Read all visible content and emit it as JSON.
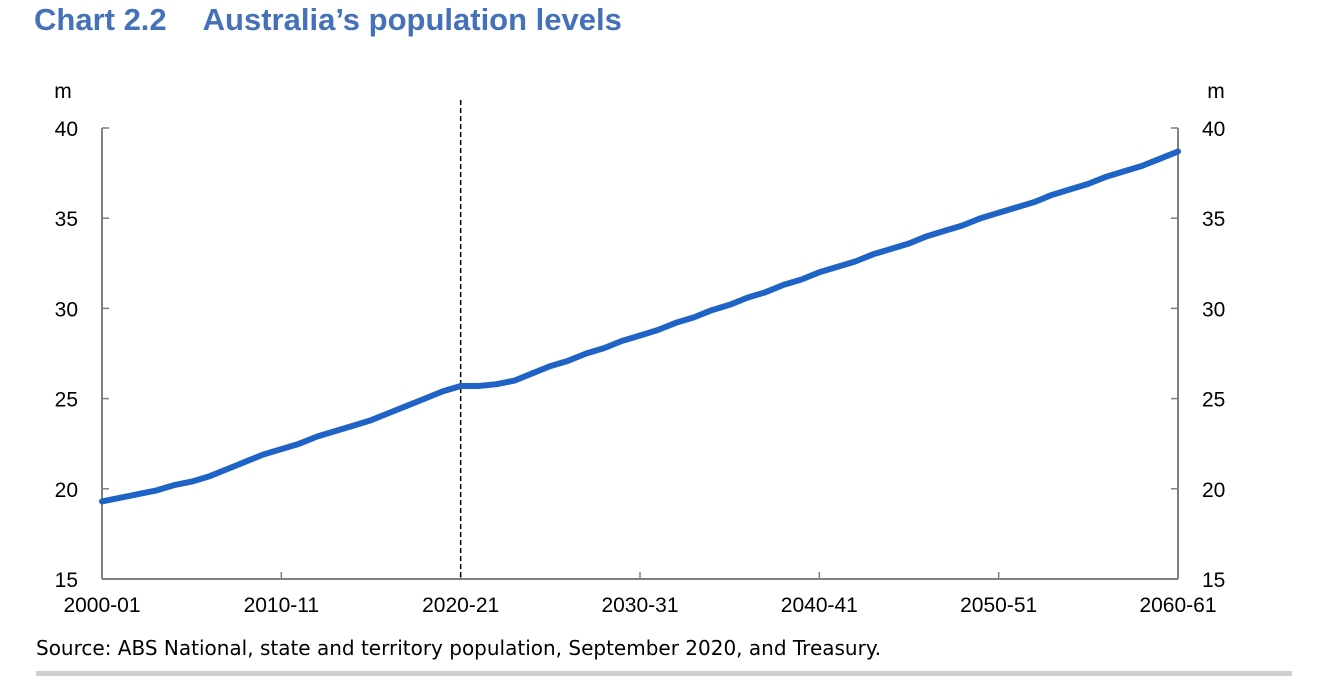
{
  "header": {
    "chart_number": "Chart 2.2",
    "chart_title": "Australia’s population levels"
  },
  "footer": {
    "source": "Source: ABS National, state and territory population, September 2020, and Treasury."
  },
  "colors": {
    "title": "#4471b8",
    "series": "#1f63c6",
    "axis": "#808080"
  },
  "chart_data": {
    "type": "line",
    "title": "Australia’s population levels",
    "ylabel_left": "m",
    "ylabel_right": "m",
    "ylim": [
      15,
      40
    ],
    "yticks": [
      15,
      20,
      25,
      30,
      35,
      40
    ],
    "xlim": [
      2000,
      2060
    ],
    "xticks": [
      {
        "x": 2000,
        "label": "2000-01"
      },
      {
        "x": 2010,
        "label": "2010-11"
      },
      {
        "x": 2020,
        "label": "2020-21"
      },
      {
        "x": 2030,
        "label": "2030-31"
      },
      {
        "x": 2040,
        "label": "2040-41"
      },
      {
        "x": 2050,
        "label": "2050-51"
      },
      {
        "x": 2060,
        "label": "2060-61"
      }
    ],
    "projection_start": 2020,
    "grid": false,
    "series": [
      {
        "name": "",
        "points": [
          [
            2000,
            19.3
          ],
          [
            2001,
            19.5
          ],
          [
            2002,
            19.7
          ],
          [
            2003,
            19.9
          ],
          [
            2004,
            20.2
          ],
          [
            2005,
            20.4
          ],
          [
            2006,
            20.7
          ],
          [
            2007,
            21.1
          ],
          [
            2008,
            21.5
          ],
          [
            2009,
            21.9
          ],
          [
            2010,
            22.2
          ],
          [
            2011,
            22.5
          ],
          [
            2012,
            22.9
          ],
          [
            2013,
            23.2
          ],
          [
            2014,
            23.5
          ],
          [
            2015,
            23.8
          ],
          [
            2016,
            24.2
          ],
          [
            2017,
            24.6
          ],
          [
            2018,
            25.0
          ],
          [
            2019,
            25.4
          ],
          [
            2020,
            25.7
          ],
          [
            2021,
            25.7
          ],
          [
            2022,
            25.8
          ],
          [
            2023,
            26.0
          ],
          [
            2024,
            26.4
          ],
          [
            2025,
            26.8
          ],
          [
            2026,
            27.1
          ],
          [
            2027,
            27.5
          ],
          [
            2028,
            27.8
          ],
          [
            2029,
            28.2
          ],
          [
            2030,
            28.5
          ],
          [
            2031,
            28.8
          ],
          [
            2032,
            29.2
          ],
          [
            2033,
            29.5
          ],
          [
            2034,
            29.9
          ],
          [
            2035,
            30.2
          ],
          [
            2036,
            30.6
          ],
          [
            2037,
            30.9
          ],
          [
            2038,
            31.3
          ],
          [
            2039,
            31.6
          ],
          [
            2040,
            32.0
          ],
          [
            2041,
            32.3
          ],
          [
            2042,
            32.6
          ],
          [
            2043,
            33.0
          ],
          [
            2044,
            33.3
          ],
          [
            2045,
            33.6
          ],
          [
            2046,
            34.0
          ],
          [
            2047,
            34.3
          ],
          [
            2048,
            34.6
          ],
          [
            2049,
            35.0
          ],
          [
            2050,
            35.3
          ],
          [
            2051,
            35.6
          ],
          [
            2052,
            35.9
          ],
          [
            2053,
            36.3
          ],
          [
            2054,
            36.6
          ],
          [
            2055,
            36.9
          ],
          [
            2056,
            37.3
          ],
          [
            2057,
            37.6
          ],
          [
            2058,
            37.9
          ],
          [
            2059,
            38.3
          ],
          [
            2060,
            38.7
          ]
        ]
      }
    ]
  }
}
